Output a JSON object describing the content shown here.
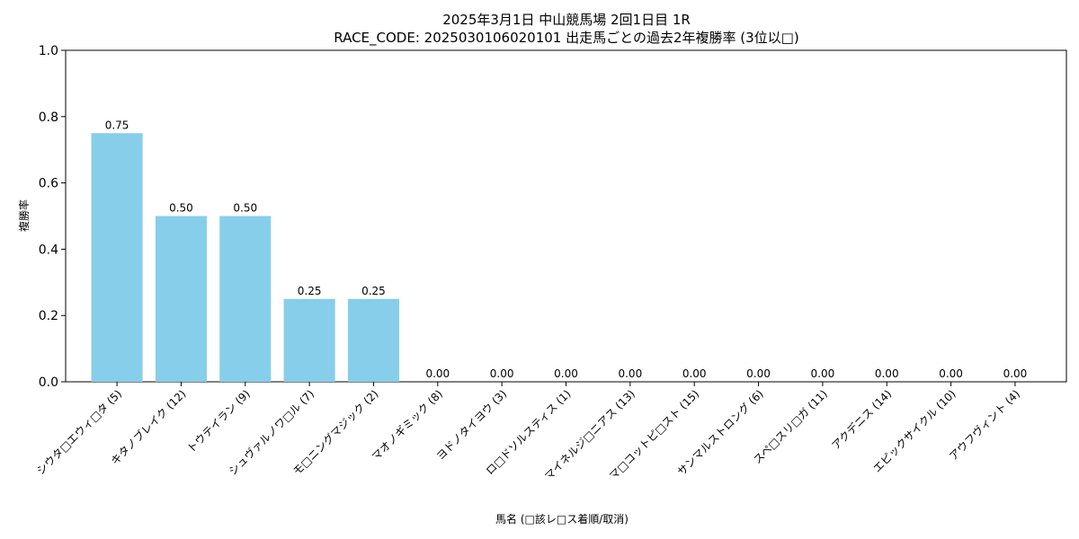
{
  "chart_data": {
    "type": "bar",
    "title": "2025年3月1日 中山競馬場 2回1日目 1R",
    "subtitle": "RACE_CODE: 2025030106020101 出走馬ごとの過去2年複勝率 (3位以□)",
    "xlabel": "馬名 (□該レ□ス着順/取消)",
    "ylabel": "複勝率",
    "ylim": [
      0,
      1.0
    ],
    "yticks": [
      "0.0",
      "0.2",
      "0.4",
      "0.6",
      "0.8",
      "1.0"
    ],
    "grid": false,
    "bar_color": "#87CEEB",
    "categories": [
      "シウタ□エウィ□タ (5)",
      "キタノブレイク (12)",
      "トウテイラン (9)",
      "シュヴァルノワ□ル (7)",
      "モ□ニングマジック (2)",
      "マオノギミック (8)",
      "ヨドノタイヨウ (3)",
      "ロ□ドソルスティス (1)",
      "マイネルジ□ニアス (13)",
      "マ□コットピ□スト (15)",
      "サンマルストロング (6)",
      "スペ□スリ□ガ (11)",
      "アクデニス (14)",
      "エピックサイクル (10)",
      "アウフヴィント (4)"
    ],
    "values": [
      0.75,
      0.5,
      0.5,
      0.25,
      0.25,
      0.0,
      0.0,
      0.0,
      0.0,
      0.0,
      0.0,
      0.0,
      0.0,
      0.0,
      0.0
    ],
    "value_labels": [
      "0.75",
      "0.50",
      "0.50",
      "0.25",
      "0.25",
      "0.00",
      "0.00",
      "0.00",
      "0.00",
      "0.00",
      "0.00",
      "0.00",
      "0.00",
      "0.00",
      "0.00"
    ]
  }
}
